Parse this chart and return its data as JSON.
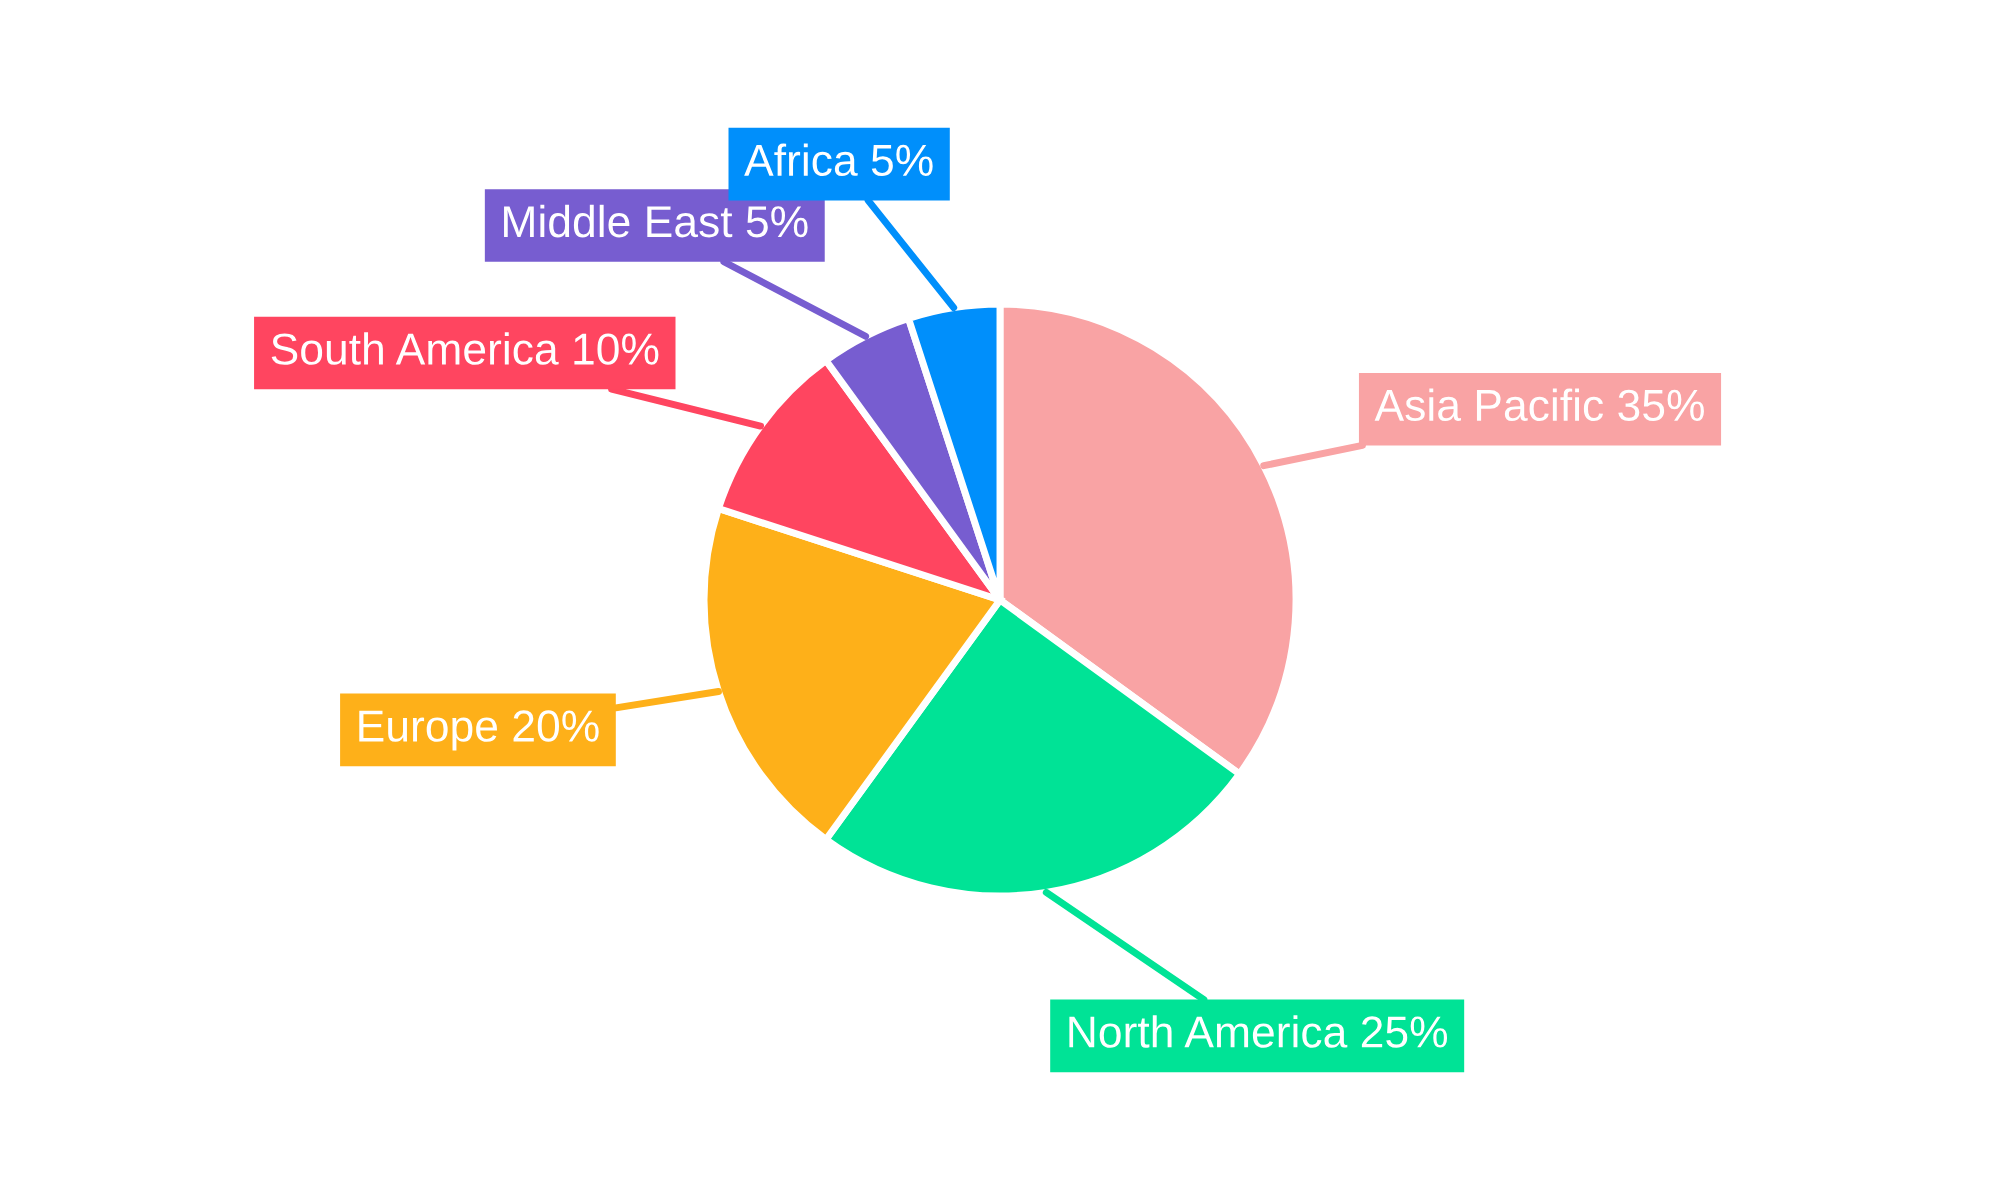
{
  "chart_data": {
    "type": "pie",
    "categories": [
      "Asia Pacific",
      "North America",
      "Europe",
      "South America",
      "Middle East",
      "Africa"
    ],
    "values": [
      35,
      25,
      20,
      10,
      5,
      5
    ],
    "value_labels": [
      "35%",
      "25%",
      "20%",
      "10%",
      "5%",
      "5%"
    ],
    "colors": [
      "#f9a3a4",
      "#00e396",
      "#feb019",
      "#ff4560",
      "#775dd0",
      "#008ffb"
    ]
  }
}
